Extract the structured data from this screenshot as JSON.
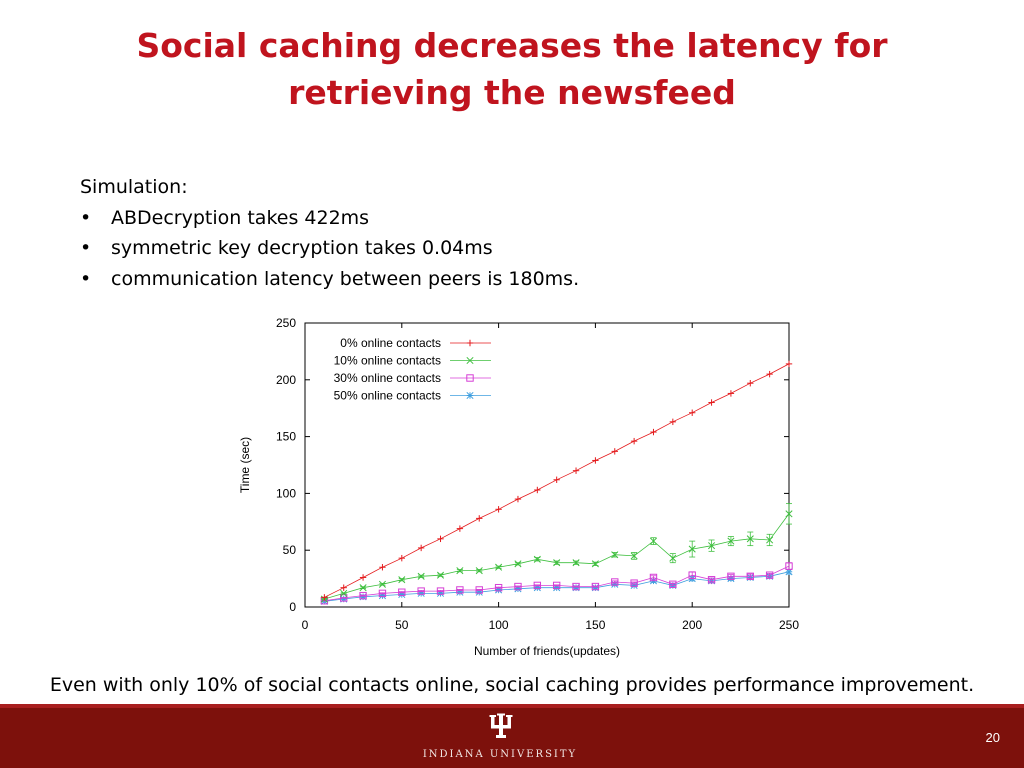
{
  "slide": {
    "title_line1": "Social caching decreases the latency for",
    "title_line2": "retrieving the newsfeed",
    "intro": "Simulation:",
    "bullets": [
      "ABDecryption takes 422ms",
      "symmetric key decryption takes 0.04ms",
      "communication latency between peers is 180ms."
    ],
    "conclusion": "Even with only 10% of social contacts online, social caching provides performance improvement.",
    "footer_text": "INDIANA UNIVERSITY",
    "page_number": "20"
  },
  "colors": {
    "title": "#c0141e",
    "footer_bar": "#7d110c"
  },
  "chart_data": {
    "type": "line",
    "xlabel": "Number of friends(updates)",
    "ylabel": "Time (sec)",
    "xlim": [
      0,
      250
    ],
    "ylim": [
      0,
      250
    ],
    "xticks": [
      0,
      50,
      100,
      150,
      200,
      250
    ],
    "yticks": [
      0,
      50,
      100,
      150,
      200,
      250
    ],
    "grid": false,
    "legend_position": "top-left",
    "x": [
      10,
      20,
      30,
      40,
      50,
      60,
      70,
      80,
      90,
      100,
      110,
      120,
      130,
      140,
      150,
      160,
      170,
      180,
      190,
      200,
      210,
      220,
      230,
      240,
      250
    ],
    "series": [
      {
        "name": "0% online contacts",
        "color": "#e41a1c",
        "marker": "plus",
        "values": [
          8.5,
          17,
          26,
          35,
          43,
          52,
          60,
          69,
          78,
          86,
          95,
          103,
          112,
          120,
          129,
          137,
          146,
          154,
          163,
          171,
          180,
          188,
          197,
          205,
          214
        ],
        "errors": []
      },
      {
        "name": "10% online contacts",
        "color": "#3fbf3f",
        "marker": "x",
        "values": [
          7,
          12,
          17,
          20,
          24,
          27,
          28,
          32,
          32,
          35,
          38,
          42,
          39,
          39,
          38,
          46,
          45,
          58,
          43,
          51,
          54,
          58,
          60,
          59,
          82
        ],
        "errors": [
          0.5,
          0.5,
          0.8,
          0.8,
          1,
          1,
          1,
          1,
          1,
          1,
          1,
          1.5,
          1.5,
          1.5,
          1.5,
          2,
          3,
          3,
          4,
          7,
          5,
          4,
          6,
          5,
          9
        ]
      },
      {
        "name": "30% online contacts",
        "color": "#d63fd6",
        "marker": "square",
        "values": [
          5.5,
          8,
          10,
          12,
          13,
          14,
          14,
          15,
          15,
          17,
          18,
          19,
          19,
          18,
          18,
          22,
          21,
          26,
          20,
          28,
          24,
          27,
          27,
          28,
          36
        ],
        "errors": [
          0.3,
          0.3,
          0.5,
          0.5,
          0.5,
          0.5,
          0.5,
          0.5,
          0.5,
          0.5,
          0.5,
          0.5,
          0.5,
          0.5,
          0.5,
          1,
          1,
          1.5,
          1,
          3,
          1.5,
          1.5,
          2,
          1.5,
          3
        ]
      },
      {
        "name": "50% online contacts",
        "color": "#3f9fdf",
        "marker": "star",
        "values": [
          5,
          7,
          9,
          10,
          11,
          12,
          12,
          13,
          13,
          15,
          16,
          17,
          17,
          17,
          17,
          20,
          19,
          23,
          19,
          25,
          23,
          25,
          26,
          27,
          31
        ],
        "errors": [
          0.3,
          0.3,
          0.5,
          0.5,
          0.5,
          0.5,
          0.5,
          0.5,
          0.5,
          0.5,
          0.5,
          0.5,
          0.5,
          0.5,
          0.5,
          1,
          1,
          1.5,
          1,
          2,
          1.5,
          1.5,
          1.5,
          1.5,
          2
        ]
      }
    ]
  }
}
